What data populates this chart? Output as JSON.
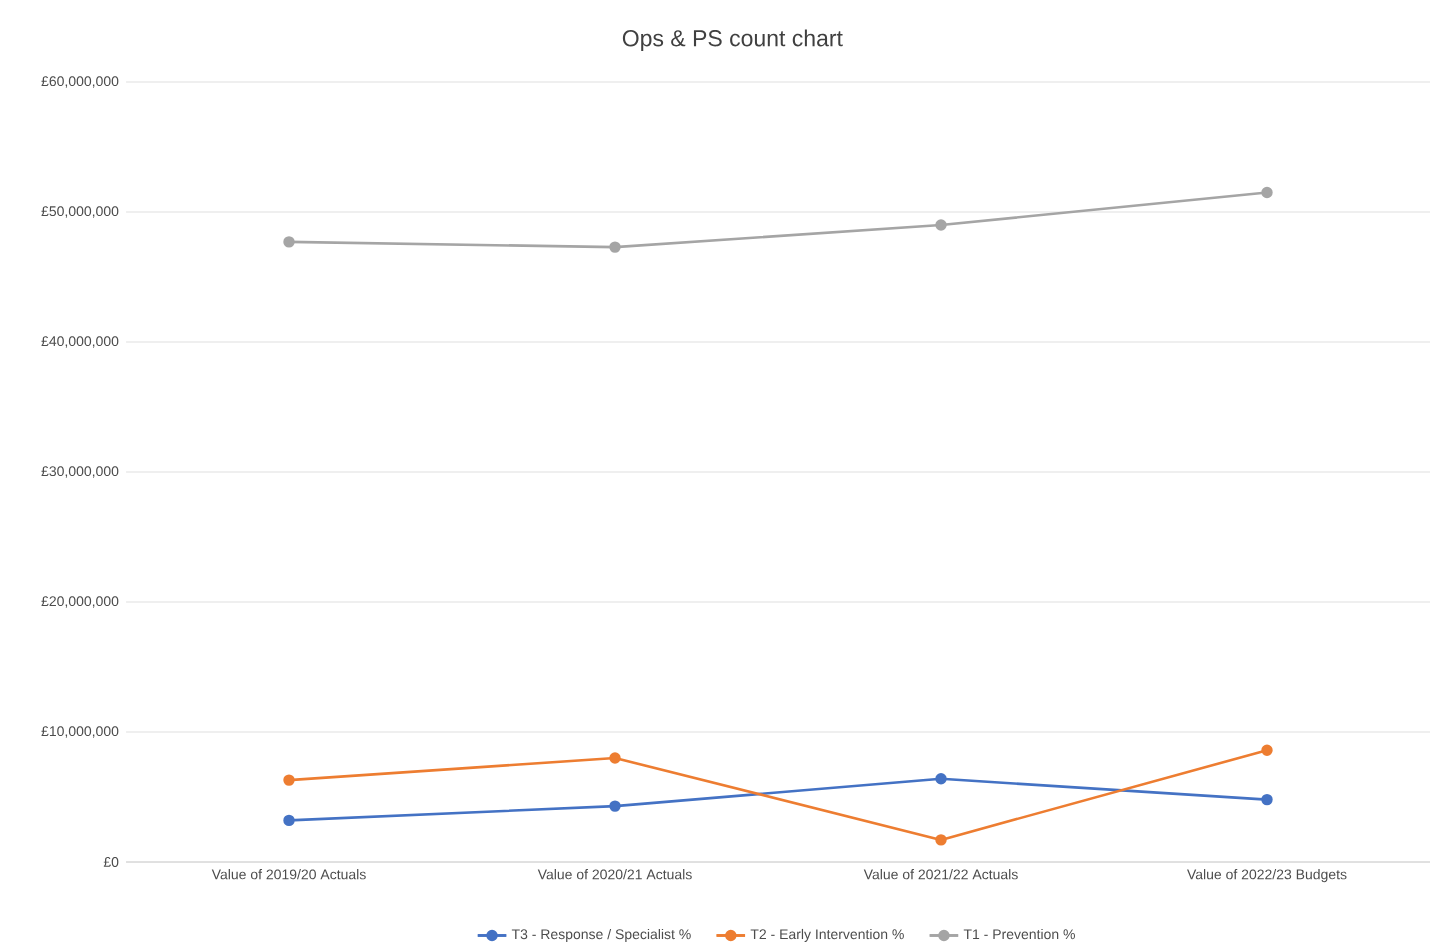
{
  "chart_data": {
    "type": "line",
    "title": "Ops & PS count chart",
    "categories": [
      "Value of 2019/20 Actuals",
      "Value of 2020/21 Actuals",
      "Value of 2021/22 Actuals",
      "Value of 2022/23 Budgets"
    ],
    "series": [
      {
        "name": "T3 - Response / Specialist %",
        "color": "#4472c4",
        "values": [
          3200000,
          4300000,
          6400000,
          4800000
        ]
      },
      {
        "name": "T2 - Early Intervention %",
        "color": "#ed7d31",
        "values": [
          6300000,
          8000000,
          1700000,
          8600000
        ]
      },
      {
        "name": "T1 - Prevention %",
        "color": "#a5a5a5",
        "values": [
          47700000,
          47300000,
          49000000,
          51500000
        ]
      }
    ],
    "ylim": [
      0,
      60000000
    ],
    "yticks": [
      {
        "value": 0,
        "label": "£0"
      },
      {
        "value": 10000000,
        "label": "£10,000,000"
      },
      {
        "value": 20000000,
        "label": "£20,000,000"
      },
      {
        "value": 30000000,
        "label": "£30,000,000"
      },
      {
        "value": 40000000,
        "label": "£40,000,000"
      },
      {
        "value": 50000000,
        "label": "£50,000,000"
      },
      {
        "value": 60000000,
        "label": "£60,000,000"
      }
    ],
    "grid": "y",
    "legend": "bottom",
    "marker": "circle",
    "line_style": "solid"
  }
}
